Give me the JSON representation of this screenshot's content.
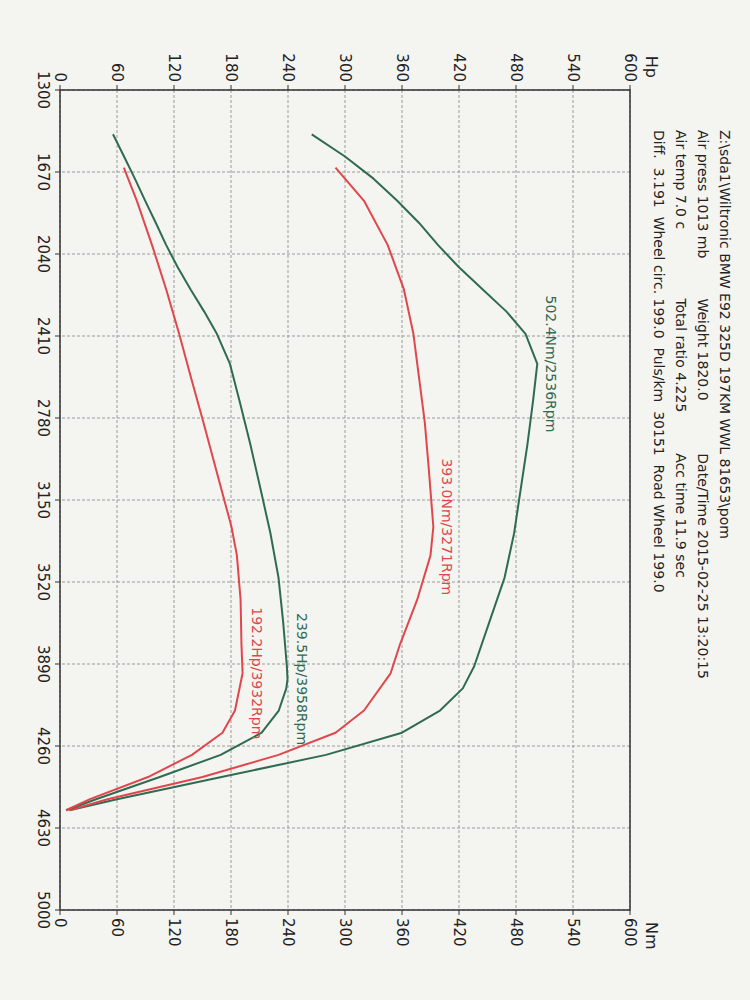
{
  "chart_data": {
    "type": "line",
    "title": "Z:\\sda1\\Wiltronic BMW E92 325D 197KM WWL 81653\\pom",
    "header_rows": [
      [
        "Air press 1013 mb",
        "Weight 1820.0",
        "Date/Time 2015-02-25 13:20:15"
      ],
      [
        "Air temp 7.0 c",
        "Total ratio 4.225",
        "Acc time 11.9 sec"
      ],
      [
        "Diff.  3.191  Wheel circ. 199.0  Puls/km  30151  Road Wheel 199.0"
      ]
    ],
    "y_label": "Hp",
    "y2_label": "Nm",
    "xlim": [
      1300,
      5000
    ],
    "xticks": [
      1300,
      1670,
      2040,
      2410,
      2780,
      3150,
      3520,
      3890,
      4260,
      4630,
      5000
    ],
    "ylim": [
      0,
      600
    ],
    "yticks": [
      0,
      60,
      120,
      180,
      240,
      300,
      360,
      420,
      480,
      540,
      600
    ],
    "y2lim": [
      0,
      600
    ],
    "y2ticks": [
      0,
      60,
      120,
      180,
      240,
      300,
      360,
      420,
      480,
      540,
      600
    ],
    "grid": true,
    "series": [
      {
        "color": "#2f6b50",
        "axis": "y2",
        "x": [
          1500,
          1600,
          1700,
          1800,
          1900,
          2000,
          2100,
          2200,
          2300,
          2400,
          2536,
          2700,
          2900,
          3100,
          3300,
          3500,
          3700,
          3900,
          4000,
          4100,
          4200,
          4300,
          4400,
          4500,
          4550
        ],
        "values": [
          265,
          300,
          330,
          355,
          378,
          398,
          420,
          445,
          470,
          490,
          502.4,
          498,
          492,
          485,
          478,
          468,
          452,
          436,
          424,
          400,
          360,
          280,
          170,
          60,
          10
        ]
      },
      {
        "color": "#e0474c",
        "axis": "y2",
        "x": [
          1650,
          1800,
          2000,
          2200,
          2400,
          2600,
          2800,
          3000,
          3271,
          3400,
          3600,
          3800,
          3932,
          4100,
          4200,
          4300,
          4400,
          4500,
          4550
        ],
        "values": [
          290,
          320,
          345,
          362,
          372,
          378,
          384,
          388,
          393,
          390,
          376,
          358,
          348,
          320,
          290,
          230,
          150,
          50,
          10
        ]
      },
      {
        "color": "#2f6b50",
        "axis": "y",
        "x": [
          1500,
          1600,
          1700,
          1800,
          1900,
          2000,
          2100,
          2200,
          2300,
          2400,
          2536,
          2700,
          2900,
          3100,
          3300,
          3500,
          3700,
          3900,
          3958,
          4000,
          4100,
          4200,
          4300,
          4400,
          4500,
          4550
        ],
        "values": [
          55.8,
          67.4,
          78.8,
          89.7,
          100.9,
          111.8,
          123.9,
          137.5,
          151.8,
          165.1,
          178.9,
          188.8,
          200.4,
          211.1,
          221.5,
          230.0,
          234.9,
          238.8,
          239.5,
          238.2,
          230.3,
          212.3,
          169.1,
          105.0,
          37.9,
          6.4
        ]
      },
      {
        "color": "#e0474c",
        "axis": "y",
        "x": [
          1650,
          1800,
          2000,
          2200,
          2400,
          2600,
          2800,
          3000,
          3271,
          3400,
          3600,
          3800,
          3932,
          4100,
          4200,
          4300,
          4400,
          4500,
          4550
        ],
        "values": [
          67.2,
          80.9,
          96.9,
          111.8,
          125.4,
          138.0,
          151.0,
          163.5,
          180.5,
          186.2,
          190.1,
          191.0,
          192.2,
          184.2,
          171.0,
          138.9,
          92.7,
          31.6,
          6.4
        ]
      }
    ],
    "annotations": [
      {
        "text": "502.4Nm/2536Rpm",
        "x": 2536,
        "y": 502.4,
        "axis": "y2",
        "color": "#2f6b50"
      },
      {
        "text": "393.0Nm/3271Rpm",
        "x": 3271,
        "y": 393.0,
        "axis": "y2",
        "color": "#e0474c"
      },
      {
        "text": "239.5Hp/3958Rpm",
        "x": 3958,
        "y": 239.5,
        "axis": "y",
        "color": "#2f6b50"
      },
      {
        "text": "192.2Hp/3932Rpm",
        "x": 3932,
        "y": 192.2,
        "axis": "y",
        "color": "#e0474c"
      }
    ]
  }
}
